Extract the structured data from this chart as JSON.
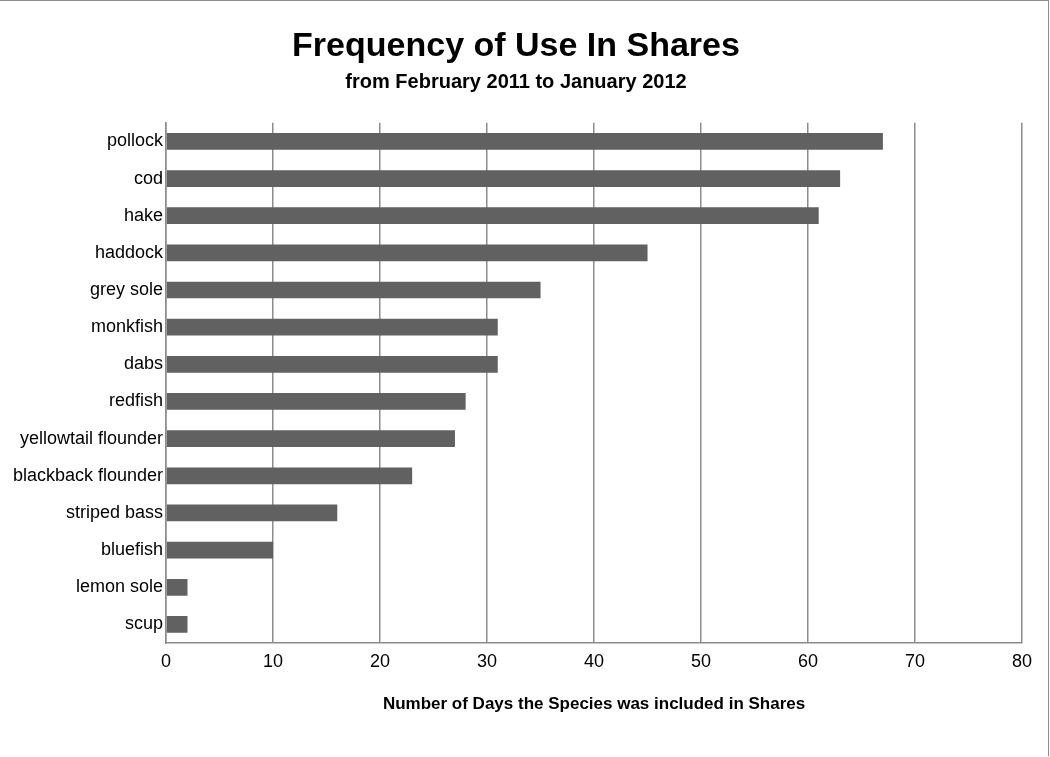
{
  "chart_data": {
    "type": "bar",
    "orientation": "horizontal",
    "title": "Frequency of Use In Shares",
    "subtitle": "from February 2011 to January 2012",
    "xlabel": "Number of Days the Species was included in Shares",
    "categories": [
      "pollock",
      "cod",
      "hake",
      "haddock",
      "grey sole",
      "monkfish",
      "dabs",
      "redfish",
      "yellowtail flounder",
      "blackback flounder",
      "striped bass",
      "bluefish",
      "lemon sole",
      "scup"
    ],
    "values": [
      67,
      63,
      61,
      45,
      35,
      31,
      31,
      28,
      27,
      23,
      16,
      10,
      2,
      2
    ],
    "color": "#616161",
    "xlim": [
      0,
      80
    ],
    "xticks": [
      0,
      10,
      20,
      30,
      40,
      50,
      60,
      70,
      80
    ],
    "grid": "x",
    "legend": false
  }
}
